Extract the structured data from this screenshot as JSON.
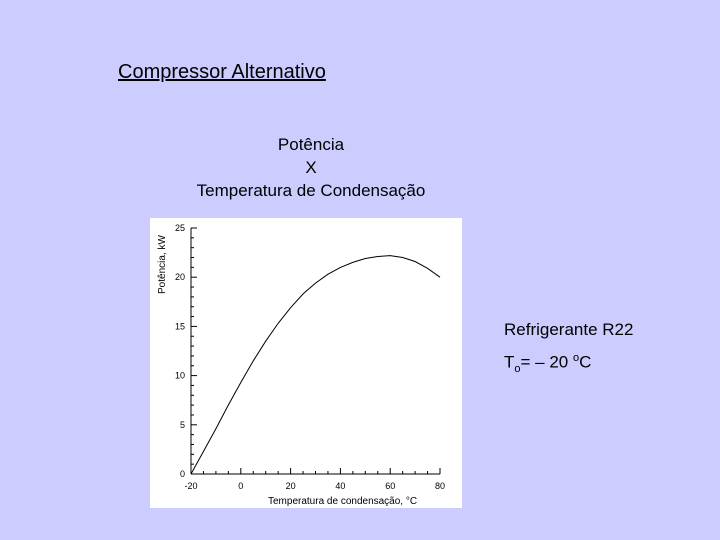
{
  "slide": {
    "title": "Compressor Alternativo",
    "subtitle_lines": [
      "Potência",
      "X",
      "Temperatura de Condensação"
    ],
    "refrigerant": "Refrigerante R22",
    "condition": {
      "symbol": "T",
      "subscript": "o",
      "value": "= – 20 ",
      "superscript": "o",
      "unit": "C"
    }
  },
  "chart_data": {
    "type": "line",
    "xlabel": "Temperatura de condensação, °C",
    "ylabel": "Potência, kW",
    "xlim": [
      -20,
      80
    ],
    "ylim": [
      0,
      25
    ],
    "xticks": [
      -20,
      0,
      20,
      40,
      60,
      80
    ],
    "yticks": [
      0,
      5,
      10,
      15,
      20,
      25
    ],
    "grid": false,
    "series": [
      {
        "x": [
          -20,
          -15,
          -10,
          -5,
          0,
          5,
          10,
          15,
          20,
          25,
          30,
          35,
          40,
          45,
          50,
          55,
          60,
          65,
          70,
          75,
          80
        ],
        "y": [
          0.0,
          2.3,
          4.6,
          7.0,
          9.3,
          11.5,
          13.5,
          15.3,
          16.9,
          18.3,
          19.4,
          20.3,
          21.0,
          21.5,
          21.9,
          22.1,
          22.2,
          22.0,
          21.6,
          20.9,
          20.0
        ]
      }
    ]
  }
}
